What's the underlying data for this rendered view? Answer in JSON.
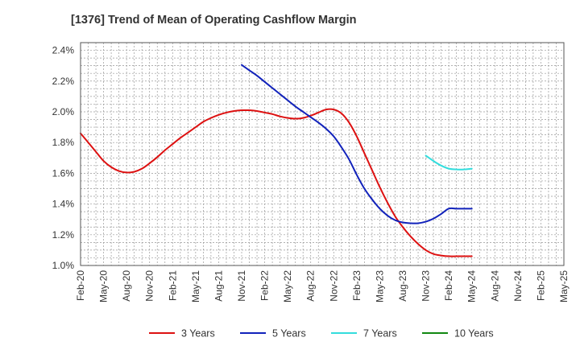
{
  "chart_data": {
    "type": "line",
    "title": "[1376]  Trend of Mean of Operating Cashflow Margin",
    "xlabel": "",
    "ylabel": "",
    "ylim": [
      1.0,
      2.45
    ],
    "yticks": [
      "1.0%",
      "1.2%",
      "1.4%",
      "1.6%",
      "1.8%",
      "2.0%",
      "2.2%",
      "2.4%"
    ],
    "ytick_values": [
      1.0,
      1.2,
      1.4,
      1.6,
      1.8,
      2.0,
      2.2,
      2.4
    ],
    "xticks": [
      "Feb-20",
      "May-20",
      "Aug-20",
      "Nov-20",
      "Feb-21",
      "May-21",
      "Aug-21",
      "Nov-21",
      "Feb-22",
      "May-22",
      "Aug-22",
      "Nov-22",
      "Feb-23",
      "May-23",
      "Aug-23",
      "Nov-23",
      "Feb-24",
      "May-24",
      "Aug-24",
      "Nov-24",
      "Feb-25",
      "May-25"
    ],
    "x_unit": "months since Feb-20",
    "grid": true,
    "legend_position": "bottom",
    "series": [
      {
        "name": "3 Years",
        "color": "#dd1111",
        "x": [
          0,
          1,
          2,
          3,
          4,
          5,
          6,
          7,
          8,
          9,
          10,
          11,
          12,
          13,
          14,
          15,
          16,
          17,
          18,
          19,
          20,
          21,
          22,
          23,
          24,
          25,
          26,
          27,
          28,
          29,
          30,
          31,
          32,
          33,
          34,
          35,
          36,
          37,
          38,
          39,
          40,
          41,
          42,
          43,
          44,
          45,
          46,
          47,
          48,
          49,
          50,
          51
        ],
        "values": [
          1.86,
          1.8,
          1.74,
          1.68,
          1.64,
          1.615,
          1.605,
          1.61,
          1.63,
          1.665,
          1.705,
          1.75,
          1.79,
          1.83,
          1.865,
          1.9,
          1.935,
          1.96,
          1.98,
          1.995,
          2.005,
          2.01,
          2.01,
          2.005,
          1.995,
          1.985,
          1.97,
          1.96,
          1.955,
          1.96,
          1.975,
          1.995,
          2.015,
          2.015,
          1.99,
          1.93,
          1.84,
          1.73,
          1.62,
          1.51,
          1.41,
          1.32,
          1.25,
          1.19,
          1.14,
          1.1,
          1.075,
          1.065,
          1.06,
          1.06,
          1.06,
          1.06
        ]
      },
      {
        "name": "5 Years",
        "color": "#1122bb",
        "x": [
          21,
          22,
          23,
          24,
          25,
          26,
          27,
          28,
          29,
          30,
          31,
          32,
          33,
          34,
          35,
          36,
          37,
          38,
          39,
          40,
          41,
          42,
          43,
          44,
          45,
          46,
          47,
          48,
          49,
          50,
          51
        ],
        "values": [
          2.305,
          2.27,
          2.235,
          2.195,
          2.155,
          2.115,
          2.075,
          2.035,
          2.0,
          1.965,
          1.93,
          1.89,
          1.84,
          1.77,
          1.69,
          1.59,
          1.5,
          1.43,
          1.37,
          1.325,
          1.295,
          1.28,
          1.275,
          1.275,
          1.285,
          1.305,
          1.335,
          1.37,
          1.37,
          1.37,
          1.37
        ]
      },
      {
        "name": "7 Years",
        "color": "#33dddd",
        "x": [
          45,
          46,
          47,
          48,
          49,
          50,
          51
        ],
        "values": [
          1.715,
          1.68,
          1.65,
          1.63,
          1.625,
          1.625,
          1.63
        ]
      },
      {
        "name": "10 Years",
        "color": "#118811",
        "x": [],
        "values": []
      }
    ]
  }
}
